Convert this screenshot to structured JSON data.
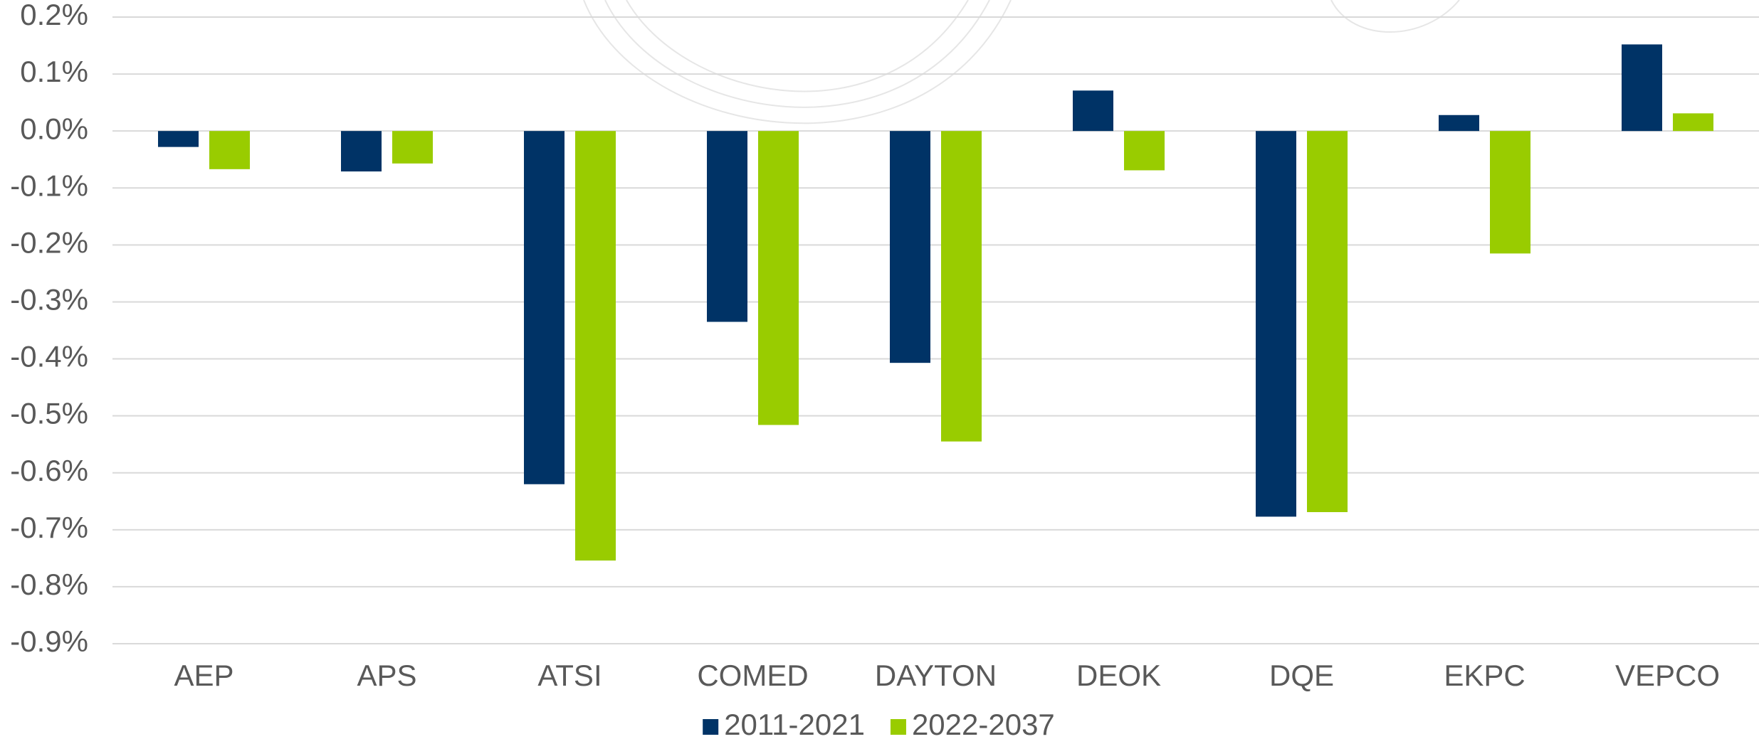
{
  "chart_data": {
    "type": "bar",
    "categories": [
      "AEP",
      "APS",
      "ATSI",
      "COMED",
      "DAYTON",
      "DEOK",
      "DQE",
      "EKPC",
      "VEPCO"
    ],
    "series": [
      {
        "name": "2011-2021",
        "color": "#003366",
        "values": [
          -0.028,
          -0.071,
          -0.62,
          -0.335,
          -0.407,
          0.071,
          -0.677,
          0.028,
          0.152
        ]
      },
      {
        "name": "2022-2037",
        "color": "#99cc00",
        "values": [
          -0.067,
          -0.057,
          -0.754,
          -0.516,
          -0.545,
          -0.069,
          -0.669,
          -0.215,
          0.031
        ]
      }
    ],
    "ylim": [
      -0.9,
      0.2
    ],
    "yticks": [
      {
        "value": 0.2,
        "label": "0.2%"
      },
      {
        "value": 0.1,
        "label": "0.1%"
      },
      {
        "value": 0.0,
        "label": "0.0%"
      },
      {
        "value": -0.1,
        "label": "-0.1%"
      },
      {
        "value": -0.2,
        "label": "-0.2%"
      },
      {
        "value": -0.3,
        "label": "-0.3%"
      },
      {
        "value": -0.4,
        "label": "-0.4%"
      },
      {
        "value": -0.5,
        "label": "-0.5%"
      },
      {
        "value": -0.6,
        "label": "-0.6%"
      },
      {
        "value": -0.7,
        "label": "-0.7%"
      },
      {
        "value": -0.8,
        "label": "-0.8%"
      },
      {
        "value": -0.9,
        "label": "-0.9%"
      }
    ],
    "grid": true,
    "legend": "bottom"
  }
}
